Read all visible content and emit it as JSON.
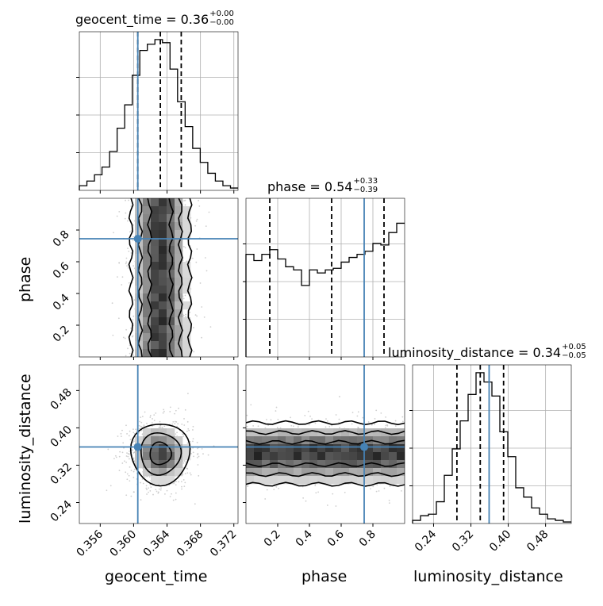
{
  "chart_data": {
    "type": "corner",
    "accent_color": "#4682b4",
    "parameters": [
      {
        "key": "geocent_time",
        "label": "geocent_time",
        "title": {
          "text": "geocent_time = 0.36",
          "plus": "+0.00",
          "minus": "−0.00"
        },
        "range": [
          0.3535,
          0.3725
        ],
        "ticks": [
          0.356,
          0.36,
          0.364,
          0.368,
          0.372
        ],
        "tick_labels": [
          "0.356",
          "0.360",
          "0.364",
          "0.368",
          "0.372"
        ],
        "truth": 0.3605,
        "quantiles": [
          0.3605,
          0.3632,
          0.3657
        ],
        "histogram": [
          0.03,
          0.06,
          0.1,
          0.15,
          0.25,
          0.4,
          0.55,
          0.74,
          0.9,
          0.94,
          0.97,
          0.95,
          0.78,
          0.57,
          0.41,
          0.27,
          0.18,
          0.11,
          0.06,
          0.03,
          0.015
        ]
      },
      {
        "key": "phase",
        "label": "phase",
        "title": {
          "text": "phase = 0.54",
          "plus": "+0.33",
          "minus": "−0.39"
        },
        "range": [
          0.0,
          1.0
        ],
        "ticks": [
          0.2,
          0.4,
          0.6,
          0.8
        ],
        "tick_labels": [
          "0.2",
          "0.4",
          "0.6",
          "0.8"
        ],
        "truth": 0.745,
        "quantiles": [
          0.15,
          0.54,
          0.87
        ],
        "histogram": [
          0.66,
          0.62,
          0.66,
          0.69,
          0.63,
          0.58,
          0.56,
          0.46,
          0.56,
          0.54,
          0.56,
          0.57,
          0.61,
          0.64,
          0.66,
          0.68,
          0.73,
          0.72,
          0.8,
          0.86
        ]
      },
      {
        "key": "luminosity_distance",
        "label": "luminosity_distance",
        "title": {
          "text": "luminosity_distance = 0.34",
          "plus": "+0.05",
          "minus": "−0.05"
        },
        "range": [
          0.195,
          0.535
        ],
        "ticks": [
          0.24,
          0.32,
          0.4,
          0.48
        ],
        "tick_labels": [
          "0.24",
          "0.32",
          "0.40",
          "0.48"
        ],
        "truth": 0.359,
        "quantiles": [
          0.29,
          0.34,
          0.39
        ],
        "histogram": [
          0.02,
          0.05,
          0.06,
          0.14,
          0.31,
          0.48,
          0.66,
          0.83,
          0.97,
          0.91,
          0.82,
          0.59,
          0.43,
          0.23,
          0.17,
          0.1,
          0.06,
          0.03,
          0.02,
          0.01
        ]
      }
    ],
    "pairs": [
      {
        "x": "geocent_time",
        "y": "phase",
        "truths": [
          0.3605,
          0.745
        ],
        "description": "vertical band around geocent_time 0.3632, uniform across phase"
      },
      {
        "x": "geocent_time",
        "y": "luminosity_distance",
        "truths": [
          0.3605,
          0.359
        ],
        "description": "compact elliptical blob centered near (0.3632, 0.345)"
      },
      {
        "x": "phase",
        "y": "luminosity_distance",
        "truths": [
          0.745,
          0.359
        ],
        "description": "horizontal band around luminosity_distance 0.345, uniform across phase"
      }
    ]
  }
}
